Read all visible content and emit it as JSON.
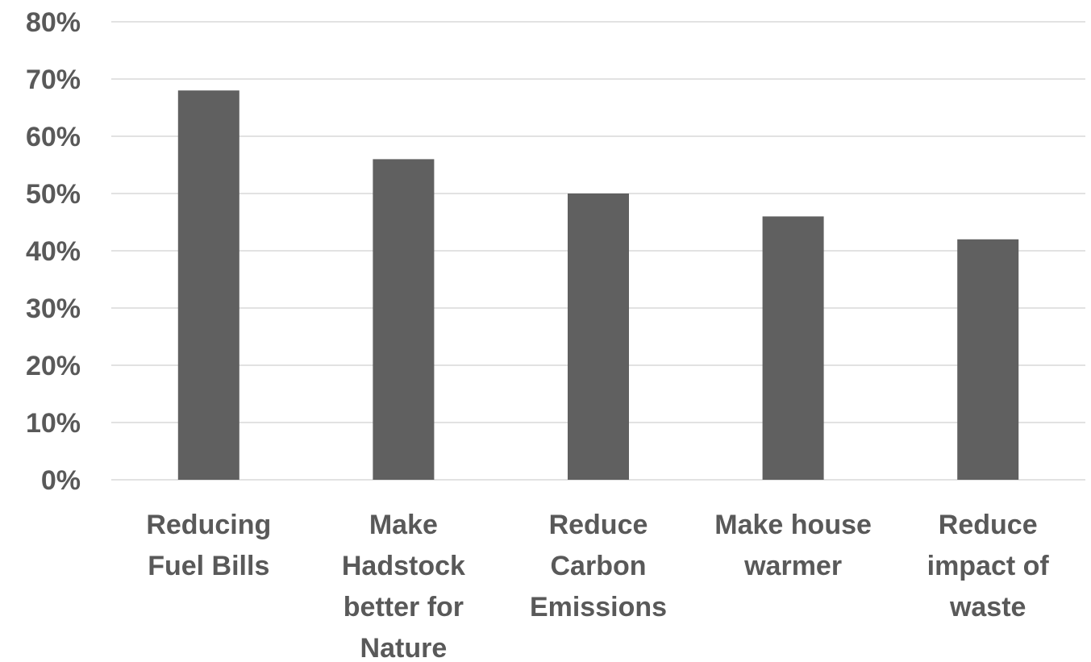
{
  "chart_data": {
    "type": "bar",
    "categories": [
      [
        "Reducing",
        "Fuel Bills"
      ],
      [
        "Make",
        "Hadstock",
        "better for",
        "Nature"
      ],
      [
        "Reduce",
        "Carbon",
        "Emissions"
      ],
      [
        "Make house",
        "warmer"
      ],
      [
        "Reduce",
        "impact of",
        "waste"
      ]
    ],
    "values": [
      0.68,
      0.56,
      0.5,
      0.46,
      0.42
    ],
    "ylim": [
      0,
      0.8
    ],
    "yticks": [
      0,
      0.1,
      0.2,
      0.3,
      0.4,
      0.5,
      0.6,
      0.7,
      0.8
    ],
    "ytick_labels": [
      "0%",
      "10%",
      "20%",
      "30%",
      "40%",
      "50%",
      "60%",
      "70%",
      "80%"
    ],
    "title": "",
    "xlabel": "",
    "ylabel": "",
    "grid": true,
    "legend": "none",
    "bar_color": "#606060"
  }
}
